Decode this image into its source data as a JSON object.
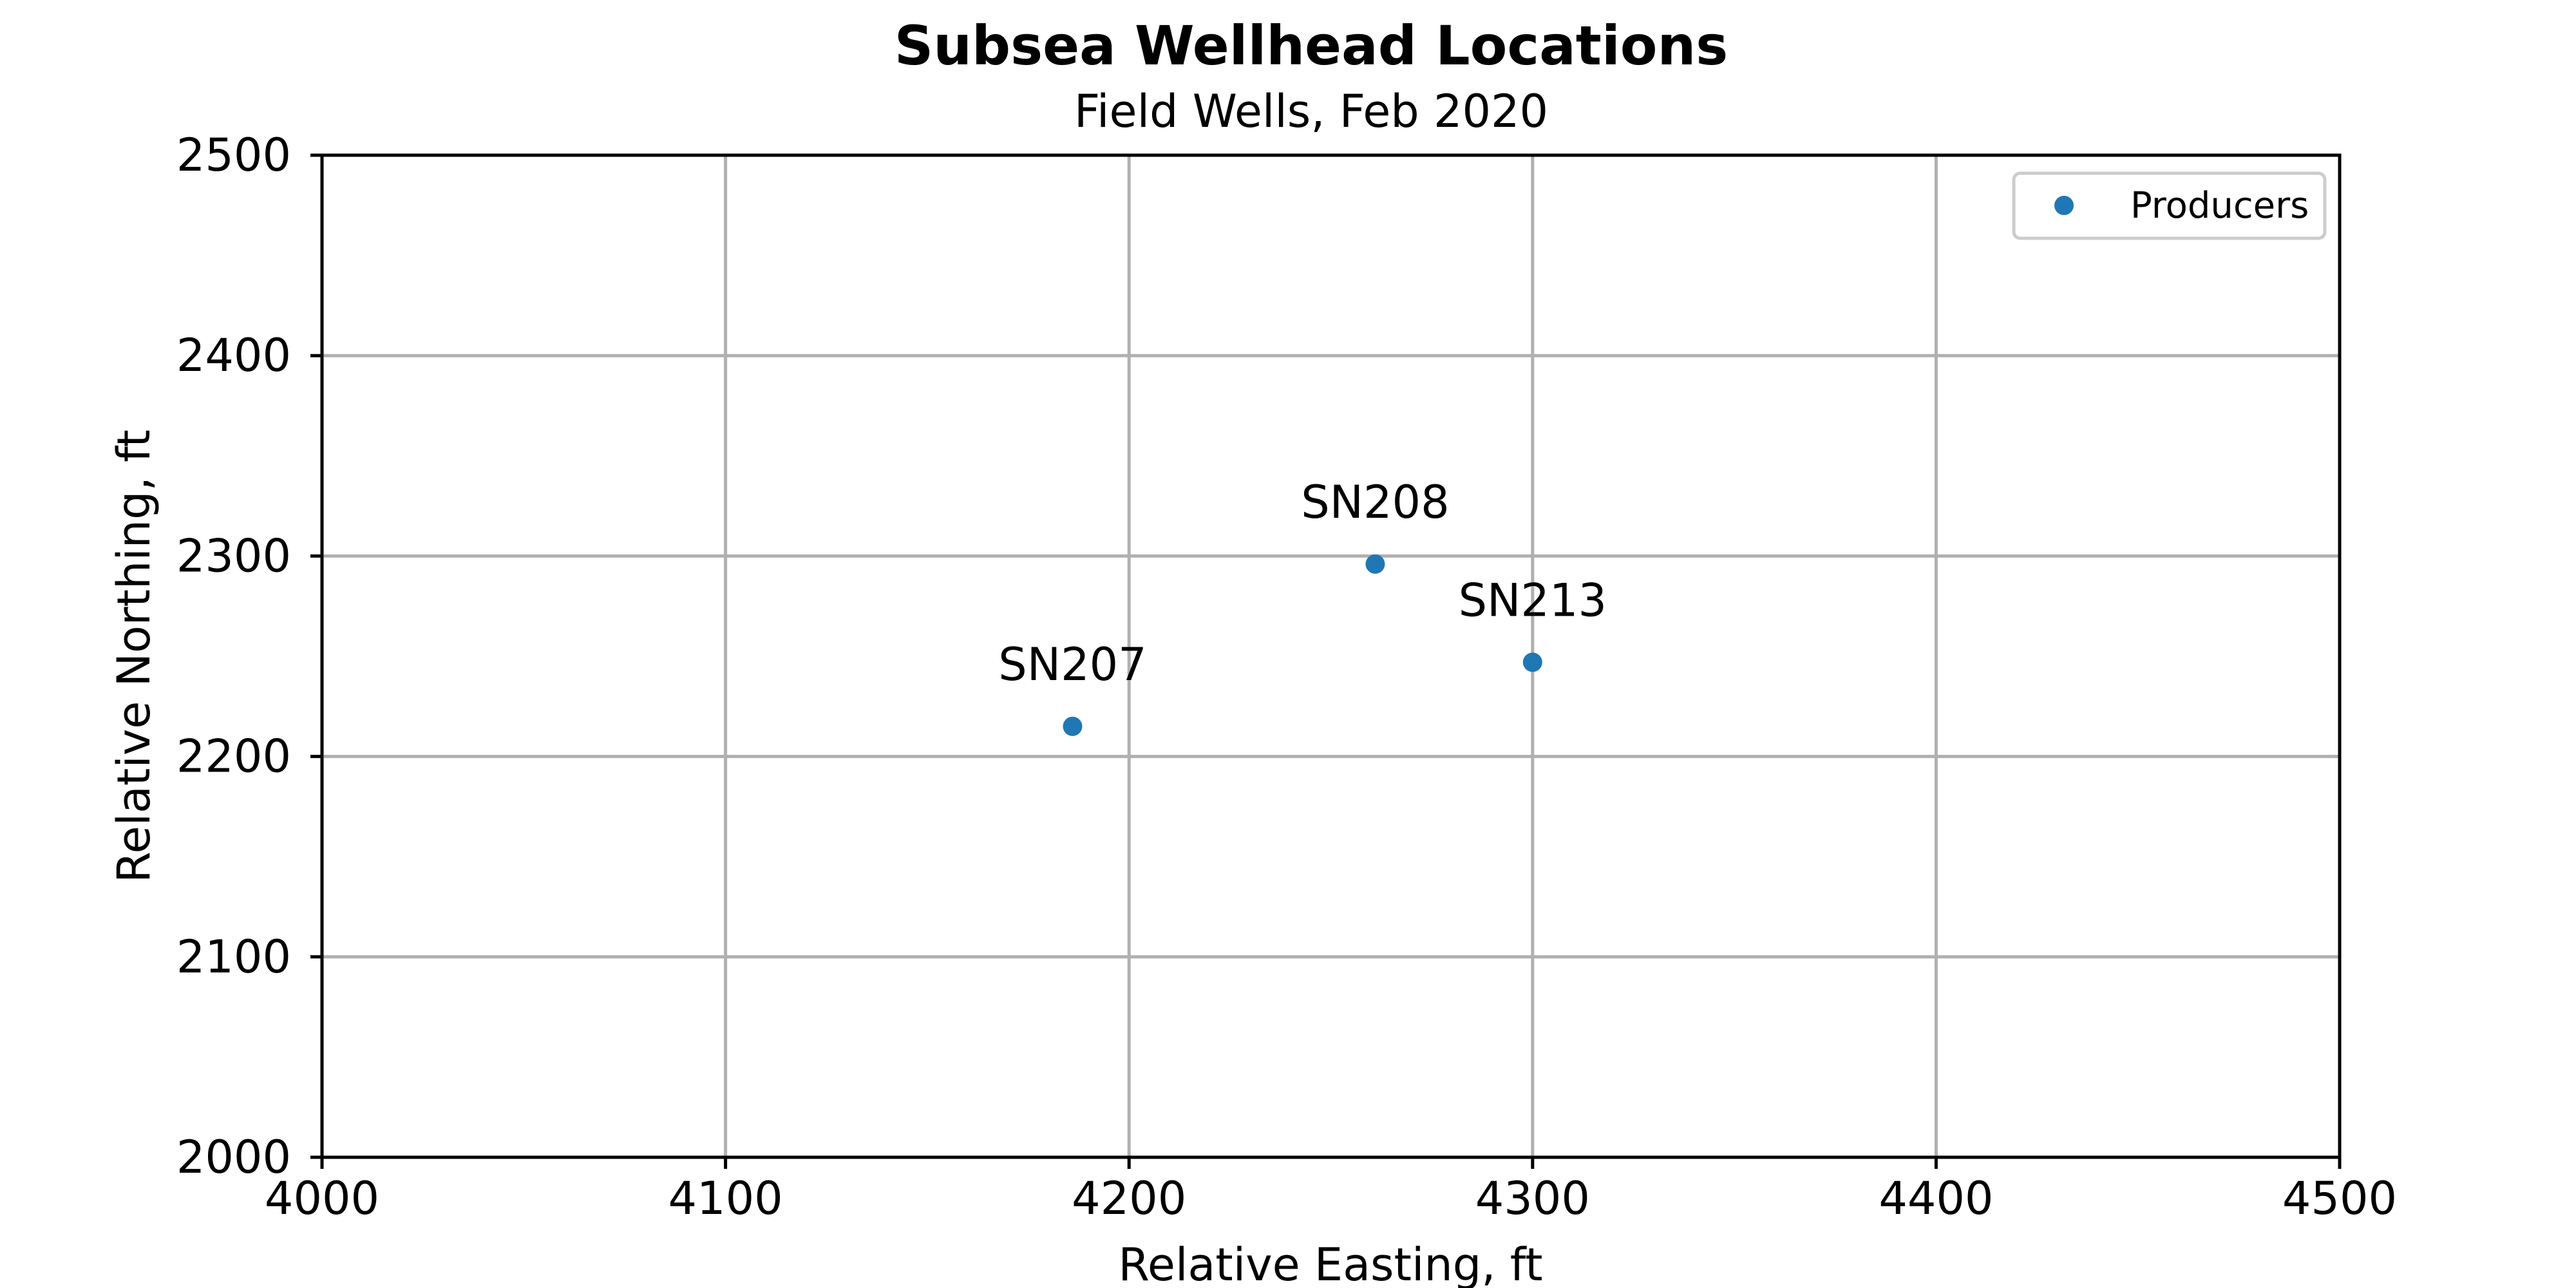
{
  "chart_data": {
    "type": "scatter",
    "title": "Subsea Wellhead Locations",
    "subtitle": "Field Wells, Feb 2020",
    "xlabel": "Relative Easting, ft",
    "ylabel": "Relative Northing, ft",
    "xlim": [
      4000,
      4500
    ],
    "ylim": [
      2000,
      2500
    ],
    "xticks": [
      "4000",
      "4100",
      "4200",
      "4300",
      "4400",
      "4500"
    ],
    "yticks": [
      "2000",
      "2100",
      "2200",
      "2300",
      "2400",
      "2500"
    ],
    "grid": true,
    "legend_position": "top-right",
    "series": [
      {
        "name": "Producers",
        "color": "#1f77b4",
        "points": [
          {
            "label": "SN207",
            "x": 4186,
            "y": 2215
          },
          {
            "label": "SN208",
            "x": 4261,
            "y": 2296
          },
          {
            "label": "SN213",
            "x": 4300,
            "y": 2247
          }
        ]
      }
    ]
  }
}
